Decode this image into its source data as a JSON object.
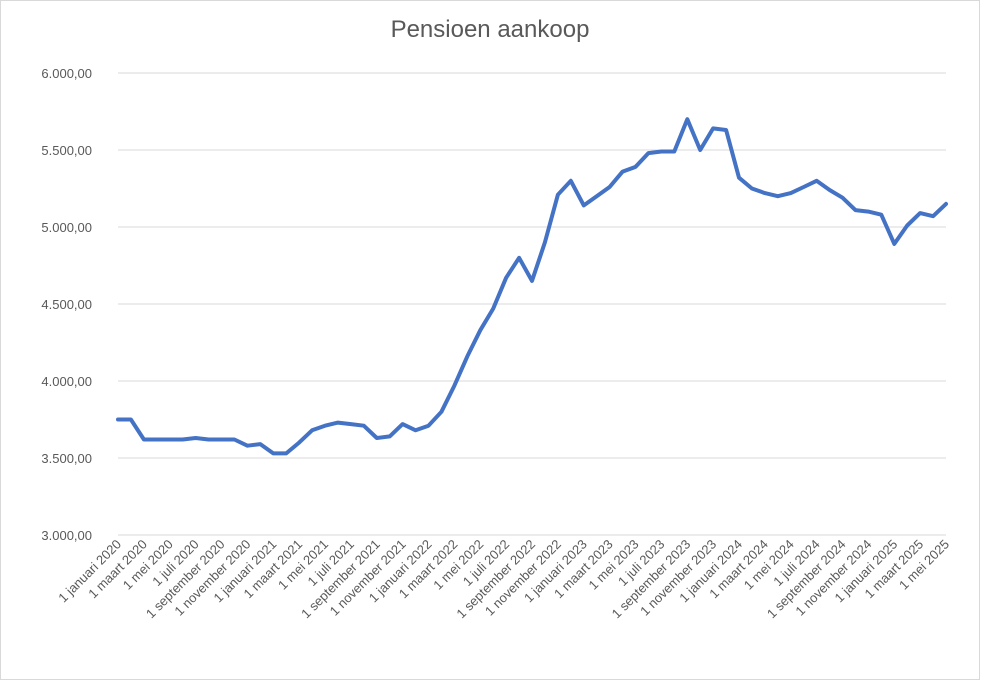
{
  "chart_data": {
    "type": "line",
    "title": "Pensioen aankoop",
    "xlabel": "",
    "ylabel": "",
    "ylim": [
      3000,
      6000
    ],
    "y_ticks": [
      "3.000,00",
      "3.500,00",
      "4.000,00",
      "4.500,00",
      "5.000,00",
      "5.500,00",
      "6.000,00"
    ],
    "y_tick_values": [
      3000,
      3500,
      4000,
      4500,
      5000,
      5500,
      6000
    ],
    "grid": true,
    "legend": "none",
    "x_tick_labels": [
      "1 januari 2020",
      "1 maart 2020",
      "1 mei 2020",
      "1 juli 2020",
      "1 september 2020",
      "1 november 2020",
      "1 januari 2021",
      "1 maart 2021",
      "1 mei 2021",
      "1 juli 2021",
      "1 september 2021",
      "1 november 2021",
      "1 januari 2022",
      "1 maart 2022",
      "1 mei 2022",
      "1 juli 2022",
      "1 september 2022",
      "1 november 2022",
      "1 januari 2023",
      "1 maart 2023",
      "1 mei 2023",
      "1 juli 2023",
      "1 september 2023",
      "1 november 2023",
      "1 januari 2024",
      "1 maart 2024",
      "1 mei 2024",
      "1 juli 2024",
      "1 september 2024",
      "1 november 2024",
      "1 januari 2025",
      "1 maart 2025",
      "1 mei 2025"
    ],
    "x": [
      "2020-01",
      "2020-02",
      "2020-03",
      "2020-04",
      "2020-05",
      "2020-06",
      "2020-07",
      "2020-08",
      "2020-09",
      "2020-10",
      "2020-11",
      "2020-12",
      "2021-01",
      "2021-02",
      "2021-03",
      "2021-04",
      "2021-05",
      "2021-06",
      "2021-07",
      "2021-08",
      "2021-09",
      "2021-10",
      "2021-11",
      "2021-12",
      "2022-01",
      "2022-02",
      "2022-03",
      "2022-04",
      "2022-05",
      "2022-06",
      "2022-07",
      "2022-08",
      "2022-09",
      "2022-10",
      "2022-11",
      "2022-12",
      "2023-01",
      "2023-02",
      "2023-03",
      "2023-04",
      "2023-05",
      "2023-06",
      "2023-07",
      "2023-08",
      "2023-09",
      "2023-10",
      "2023-11",
      "2023-12",
      "2024-01",
      "2024-02",
      "2024-03",
      "2024-04",
      "2024-05",
      "2024-06",
      "2024-07",
      "2024-08",
      "2024-09",
      "2024-10",
      "2024-11",
      "2024-12",
      "2025-01",
      "2025-02",
      "2025-03",
      "2025-04",
      "2025-05"
    ],
    "series": [
      {
        "color": "#4472c4",
        "values": [
          3750,
          3750,
          3620,
          3620,
          3620,
          3620,
          3630,
          3620,
          3620,
          3620,
          3580,
          3590,
          3530,
          3530,
          3600,
          3680,
          3710,
          3730,
          3720,
          3710,
          3630,
          3640,
          3720,
          3680,
          3710,
          3800,
          3970,
          4160,
          4330,
          4470,
          4670,
          4800,
          4650,
          4900,
          5210,
          5300,
          5140,
          5200,
          5260,
          5360,
          5390,
          5480,
          5490,
          5490,
          5700,
          5500,
          5640,
          5630,
          5320,
          5250,
          5220,
          5200,
          5220,
          5260,
          5300,
          5240,
          5190,
          5110,
          5100,
          5080,
          4890,
          5010,
          5090,
          5070,
          5150
        ]
      }
    ]
  }
}
